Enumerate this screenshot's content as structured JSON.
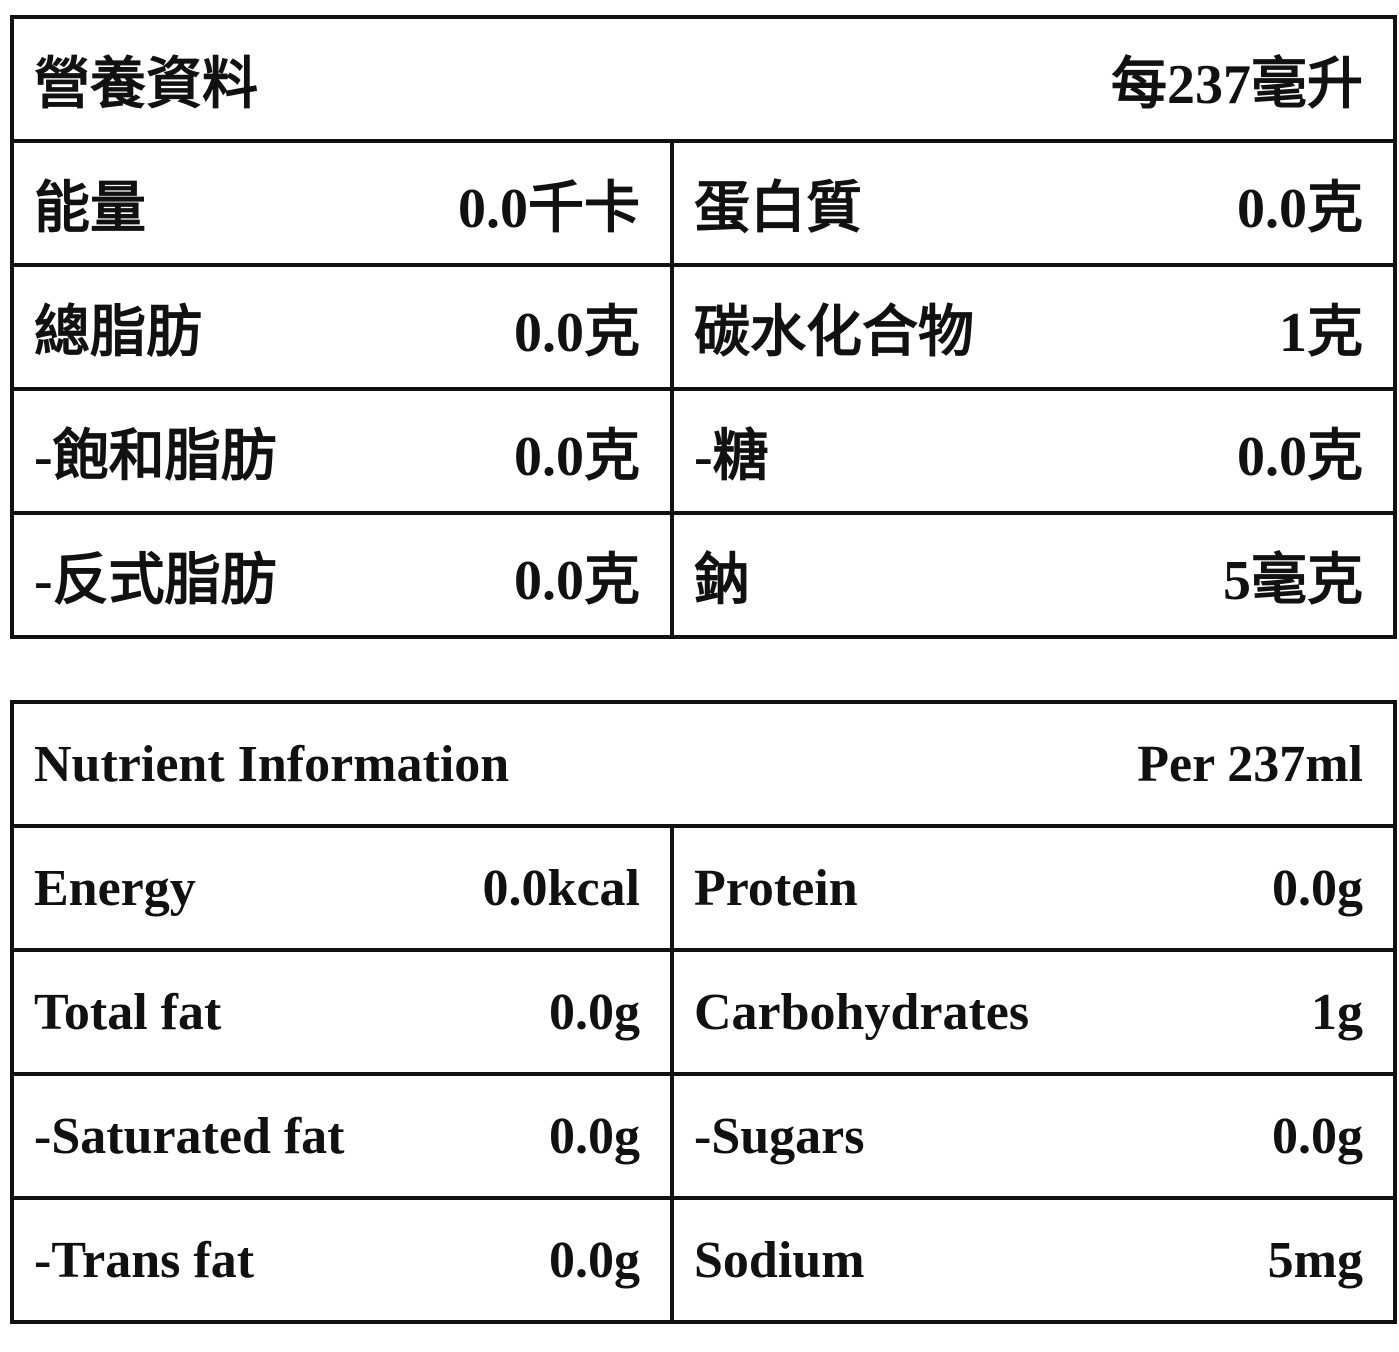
{
  "tables": [
    {
      "title": "營養資料",
      "serving": "每237毫升",
      "rows": [
        [
          {
            "label": "能量",
            "value": "0.0千卡"
          },
          {
            "label": "蛋白質",
            "value": "0.0克"
          }
        ],
        [
          {
            "label": "總脂肪",
            "value": "0.0克"
          },
          {
            "label": "碳水化合物",
            "value": "1克"
          }
        ],
        [
          {
            "label": "-飽和脂肪",
            "value": "0.0克"
          },
          {
            "label": "-糖",
            "value": "0.0克"
          }
        ],
        [
          {
            "label": "-反式脂肪",
            "value": "0.0克"
          },
          {
            "label": "鈉",
            "value": "5毫克"
          }
        ]
      ]
    },
    {
      "title": "Nutrient Information",
      "serving": "Per 237ml",
      "rows": [
        [
          {
            "label": "Energy",
            "value": "0.0kcal"
          },
          {
            "label": "Protein",
            "value": "0.0g"
          }
        ],
        [
          {
            "label": "Total fat",
            "value": "0.0g"
          },
          {
            "label": "Carbohydrates",
            "value": "1g"
          }
        ],
        [
          {
            "label": "-Saturated fat",
            "value": "0.0g"
          },
          {
            "label": "-Sugars",
            "value": "0.0g"
          }
        ],
        [
          {
            "label": "-Trans fat",
            "value": "0.0g"
          },
          {
            "label": "Sodium",
            "value": "5mg"
          }
        ]
      ]
    }
  ]
}
